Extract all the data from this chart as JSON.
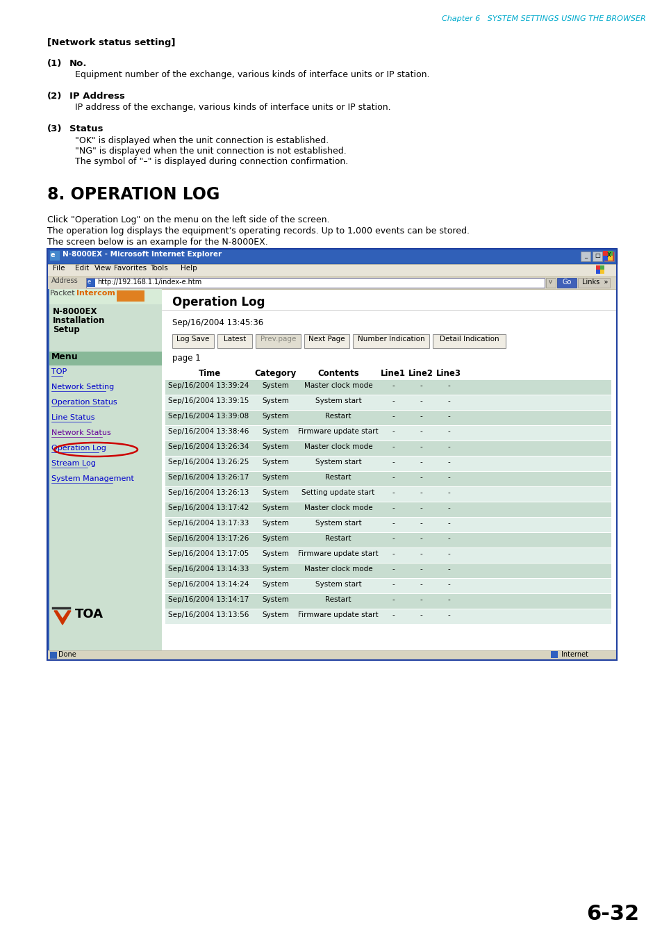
{
  "page_bg": "#ffffff",
  "header_text": "Chapter 6   SYSTEM SETTINGS USING THE BROWSER",
  "header_color": "#00aacc",
  "section_title": "[Network status setting]",
  "items": [
    {
      "number": "(1)",
      "bold_text": "No.",
      "body": "Equipment number of the exchange, various kinds of interface units or IP station."
    },
    {
      "number": "(2)",
      "bold_text": "IP Address",
      "body": "IP address of the exchange, various kinds of interface units or IP station."
    },
    {
      "number": "(3)",
      "bold_text": "Status",
      "body_lines": [
        "\"OK\" is displayed when the unit connection is established.",
        "\"NG\" is displayed when the unit connection is not established.",
        "The symbol of \"–\" is displayed during connection confirmation."
      ]
    }
  ],
  "section8_title": "8. OPERATION LOG",
  "desc_lines": [
    "Click \"Operation Log\" on the menu on the left side of the screen.",
    "The operation log displays the equipment's operating records. Up to 1,000 events can be stored.",
    "The screen below is an example for the N-8000EX."
  ],
  "browser_title": "N-8000EX - Microsoft Internet Explorer",
  "browser_title_bg": "#3060b8",
  "address_bar": "http://192.168.1.1/index-e.htm",
  "sidebar_items": [
    "TOP",
    "Network Setting",
    "Operation Status",
    "Line Status",
    "Network Status",
    "Operation Log",
    "Stream Log",
    "System Management"
  ],
  "sidebar_header": "Menu",
  "sidebar_bg": "#cce0d0",
  "sidebar_header_bg": "#88b898",
  "left_panel_bg": "#ddeedd",
  "left_panel_text": [
    "N-8000EX",
    "Installation",
    "Setup"
  ],
  "op_log_title": "Operation Log",
  "timestamp": "Sep/16/2004 13:45:36",
  "buttons": [
    "Log Save",
    "Latest",
    "Prev.page",
    "Next Page",
    "Number Indication",
    "Detail Indication"
  ],
  "page_label": "page 1",
  "table_headers": [
    "Time",
    "Category",
    "Contents",
    "Line1",
    "Line2",
    "Line3"
  ],
  "table_rows": [
    [
      "Sep/16/2004 13:39:24",
      "System",
      "Master clock mode",
      "-",
      "-",
      "-"
    ],
    [
      "Sep/16/2004 13:39:15",
      "System",
      "System start",
      "-",
      "-",
      "-"
    ],
    [
      "Sep/16/2004 13:39:08",
      "System",
      "Restart",
      "-",
      "-",
      "-"
    ],
    [
      "Sep/16/2004 13:38:46",
      "System",
      "Firmware update start",
      "-",
      "-",
      "-"
    ],
    [
      "Sep/16/2004 13:26:34",
      "System",
      "Master clock mode",
      "-",
      "-",
      "-"
    ],
    [
      "Sep/16/2004 13:26:25",
      "System",
      "System start",
      "-",
      "-",
      "-"
    ],
    [
      "Sep/16/2004 13:26:17",
      "System",
      "Restart",
      "-",
      "-",
      "-"
    ],
    [
      "Sep/16/2004 13:26:13",
      "System",
      "Setting update start",
      "-",
      "-",
      "-"
    ],
    [
      "Sep/16/2004 13:17:42",
      "System",
      "Master clock mode",
      "-",
      "-",
      "-"
    ],
    [
      "Sep/16/2004 13:17:33",
      "System",
      "System start",
      "-",
      "-",
      "-"
    ],
    [
      "Sep/16/2004 13:17:26",
      "System",
      "Restart",
      "-",
      "-",
      "-"
    ],
    [
      "Sep/16/2004 13:17:05",
      "System",
      "Firmware update start",
      "-",
      "-",
      "-"
    ],
    [
      "Sep/16/2004 13:14:33",
      "System",
      "Master clock mode",
      "-",
      "-",
      "-"
    ],
    [
      "Sep/16/2004 13:14:24",
      "System",
      "System start",
      "-",
      "-",
      "-"
    ],
    [
      "Sep/16/2004 13:14:17",
      "System",
      "Restart",
      "-",
      "-",
      "-"
    ],
    [
      "Sep/16/2004 13:13:56",
      "System",
      "Firmware update start",
      "-",
      "-",
      "-"
    ]
  ],
  "table_row_bg_dark": "#c8ddd0",
  "table_row_bg_light": "#e0eee8",
  "page_number": "6-32",
  "menubar_bg": "#e8e4d8",
  "addrbar_bg": "#d8d4c4"
}
